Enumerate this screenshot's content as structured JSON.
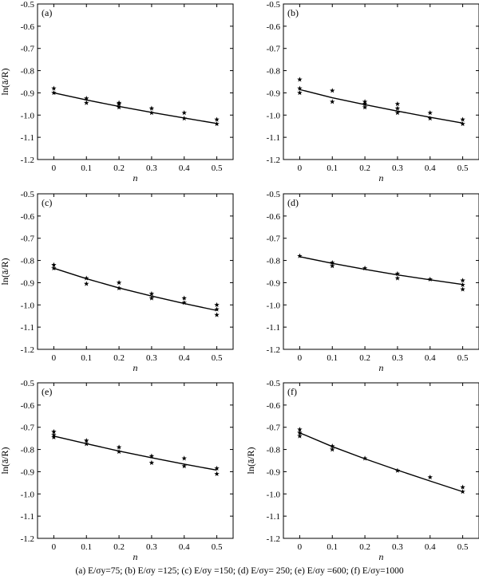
{
  "caption": "(a)  E/σy=75;  (b)  E/σy  =125;  (c)  E/σy  =150; (d) E/σy= 250; (e) E/σy =600; (f) E/σy=1000",
  "chart_data": [
    {
      "type": "scatter",
      "panel_label": "(a)",
      "xlabel": "n",
      "ylabel": "ln(ā/R)",
      "xlim": [
        -0.05,
        0.55
      ],
      "ylim": [
        -1.2,
        -0.5
      ],
      "x_ticks": [
        "0",
        "0.1",
        "0.2",
        "0.3",
        "0.4",
        "0.5"
      ],
      "y_ticks": [
        "-0.5",
        "-0.6",
        "-0.7",
        "-0.8",
        "-0.9",
        "-1.0",
        "-1.1",
        "-1.2"
      ],
      "series": [
        {
          "kind": "points",
          "marker": "star",
          "x": [
            0,
            0,
            0.1,
            0.1,
            0.2,
            0.2,
            0.2,
            0.3,
            0.3,
            0.4,
            0.4,
            0.5,
            0.5
          ],
          "y": [
            -0.88,
            -0.9,
            -0.925,
            -0.945,
            -0.945,
            -0.95,
            -0.965,
            -0.97,
            -0.99,
            -0.99,
            -1.015,
            -1.02,
            -1.04
          ]
        },
        {
          "kind": "line",
          "x": [
            0,
            0.1,
            0.2,
            0.3,
            0.4,
            0.5
          ],
          "y": [
            -0.9,
            -0.932,
            -0.961,
            -0.988,
            -1.013,
            -1.038
          ]
        }
      ]
    },
    {
      "type": "scatter",
      "panel_label": "(b)",
      "xlabel": "n",
      "ylabel": "",
      "xlim": [
        -0.05,
        0.55
      ],
      "ylim": [
        -1.2,
        -0.5
      ],
      "x_ticks": [
        "0",
        "0.1",
        "0.2",
        "0.3",
        "0.4",
        "0.5"
      ],
      "y_ticks": [
        "-0.5",
        "-0.6",
        "-0.7",
        "-0.8",
        "-0.9",
        "-1.0",
        "-1.1",
        "-1.2"
      ],
      "series": [
        {
          "kind": "points",
          "marker": "star",
          "x": [
            0,
            0,
            0,
            0.1,
            0.1,
            0.2,
            0.2,
            0.2,
            0.3,
            0.3,
            0.3,
            0.4,
            0.4,
            0.5,
            0.5
          ],
          "y": [
            -0.84,
            -0.88,
            -0.9,
            -0.89,
            -0.94,
            -0.94,
            -0.95,
            -0.965,
            -0.95,
            -0.97,
            -0.99,
            -0.99,
            -1.015,
            -1.02,
            -1.04
          ]
        },
        {
          "kind": "line",
          "x": [
            0,
            0.1,
            0.2,
            0.3,
            0.4,
            0.5
          ],
          "y": [
            -0.885,
            -0.922,
            -0.953,
            -0.982,
            -1.01,
            -1.036
          ]
        }
      ]
    },
    {
      "type": "scatter",
      "panel_label": "(c)",
      "xlabel": "n",
      "ylabel": "ln(ā/R)",
      "xlim": [
        -0.05,
        0.55
      ],
      "ylim": [
        -1.2,
        -0.5
      ],
      "x_ticks": [
        "0",
        "0.1",
        "0.2",
        "0.3",
        "0.4",
        "0.5"
      ],
      "y_ticks": [
        "-0.5",
        "-0.6",
        "-0.7",
        "-0.8",
        "-0.9",
        "-1.0",
        "-1.1",
        "-1.2"
      ],
      "series": [
        {
          "kind": "points",
          "marker": "star",
          "x": [
            0,
            0,
            0.1,
            0.1,
            0.2,
            0.2,
            0.3,
            0.3,
            0.4,
            0.4,
            0.5,
            0.5,
            0.5
          ],
          "y": [
            -0.82,
            -0.835,
            -0.88,
            -0.905,
            -0.9,
            -0.925,
            -0.95,
            -0.97,
            -0.97,
            -0.99,
            -1.0,
            -1.02,
            -1.045
          ]
        },
        {
          "kind": "line",
          "x": [
            0,
            0.1,
            0.2,
            0.3,
            0.4,
            0.5
          ],
          "y": [
            -0.835,
            -0.882,
            -0.924,
            -0.96,
            -0.994,
            -1.025
          ]
        }
      ]
    },
    {
      "type": "scatter",
      "panel_label": "(d)",
      "xlabel": "n",
      "ylabel": "",
      "xlim": [
        -0.05,
        0.55
      ],
      "ylim": [
        -1.2,
        -0.5
      ],
      "x_ticks": [
        "0",
        "0.1",
        "0.2",
        "0.3",
        "0.4",
        "0.5"
      ],
      "y_ticks": [
        "-0.5",
        "-0.6",
        "-0.7",
        "-0.8",
        "-0.9",
        "-1.0",
        "-1.1",
        "-1.2"
      ],
      "series": [
        {
          "kind": "points",
          "marker": "star",
          "x": [
            0,
            0.1,
            0.1,
            0.2,
            0.3,
            0.3,
            0.4,
            0.5,
            0.5,
            0.5
          ],
          "y": [
            -0.78,
            -0.81,
            -0.825,
            -0.835,
            -0.86,
            -0.88,
            -0.885,
            -0.89,
            -0.91,
            -0.93
          ]
        },
        {
          "kind": "line",
          "x": [
            0,
            0.1,
            0.2,
            0.3,
            0.4,
            0.5
          ],
          "y": [
            -0.783,
            -0.813,
            -0.84,
            -0.865,
            -0.887,
            -0.908
          ]
        }
      ]
    },
    {
      "type": "scatter",
      "panel_label": "(e)",
      "xlabel": "n",
      "ylabel": "ln(ā/R)",
      "xlim": [
        -0.05,
        0.55
      ],
      "ylim": [
        -1.2,
        -0.5
      ],
      "x_ticks": [
        "0",
        "0.1",
        "0.2",
        "0.3",
        "0.4",
        "0.5"
      ],
      "y_ticks": [
        "-0.5",
        "-0.6",
        "-0.7",
        "-0.8",
        "-0.9",
        "-1.0",
        "-1.1",
        "-1.2"
      ],
      "series": [
        {
          "kind": "points",
          "marker": "star",
          "x": [
            0,
            0,
            0,
            0.1,
            0.1,
            0.2,
            0.2,
            0.3,
            0.3,
            0.4,
            0.4,
            0.5,
            0.5
          ],
          "y": [
            -0.72,
            -0.735,
            -0.745,
            -0.76,
            -0.775,
            -0.79,
            -0.81,
            -0.83,
            -0.86,
            -0.84,
            -0.875,
            -0.885,
            -0.91
          ]
        },
        {
          "kind": "line",
          "x": [
            0,
            0.1,
            0.2,
            0.3,
            0.4,
            0.5
          ],
          "y": [
            -0.74,
            -0.774,
            -0.807,
            -0.837,
            -0.866,
            -0.893
          ]
        }
      ]
    },
    {
      "type": "scatter",
      "panel_label": "(f)",
      "xlabel": "n",
      "ylabel": "ln(ā/R)",
      "xlim": [
        -0.05,
        0.55
      ],
      "ylim": [
        -1.2,
        -0.5
      ],
      "x_ticks": [
        "0",
        "0.1",
        "0.2",
        "0.3",
        "0.4",
        "0.5"
      ],
      "y_ticks": [
        "-0.5",
        "-0.6",
        "-0.7",
        "-0.8",
        "-0.9",
        "-1.0",
        "-1.1",
        "-1.2"
      ],
      "series": [
        {
          "kind": "points",
          "marker": "star",
          "x": [
            0,
            0,
            0,
            0.1,
            0.1,
            0.2,
            0.3,
            0.4,
            0.5,
            0.5
          ],
          "y": [
            -0.71,
            -0.725,
            -0.74,
            -0.785,
            -0.8,
            -0.84,
            -0.895,
            -0.925,
            -0.97,
            -0.99
          ]
        },
        {
          "kind": "line",
          "x": [
            0,
            0.1,
            0.2,
            0.3,
            0.4,
            0.5
          ],
          "y": [
            -0.725,
            -0.787,
            -0.842,
            -0.893,
            -0.942,
            -0.99
          ]
        }
      ]
    }
  ]
}
